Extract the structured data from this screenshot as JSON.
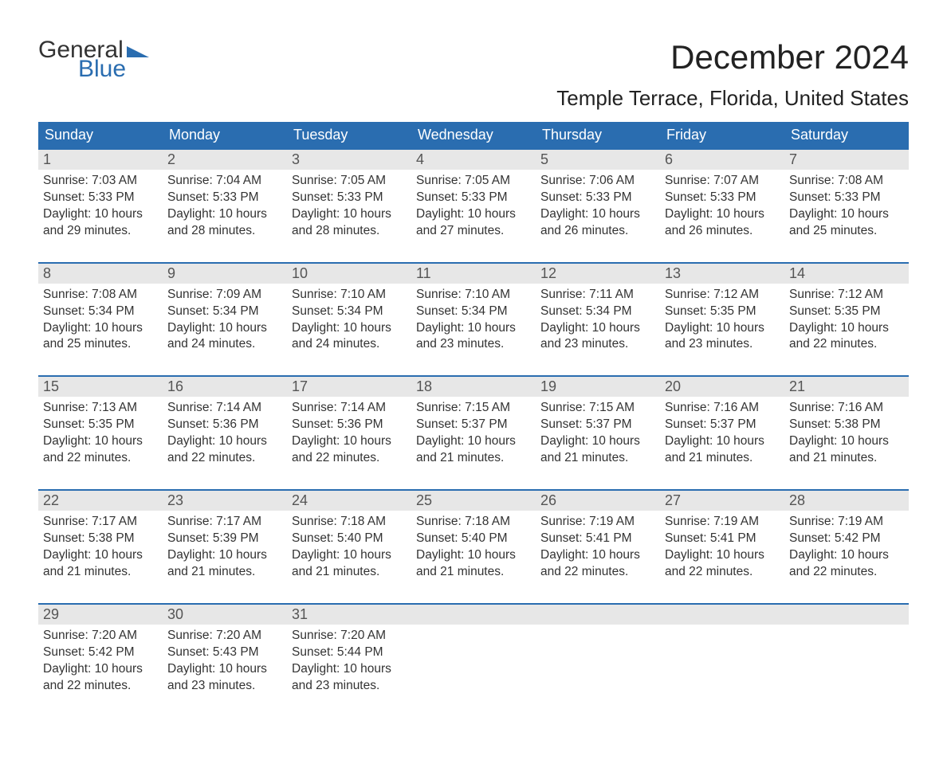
{
  "logo": {
    "text_general": "General",
    "text_blue": "Blue",
    "flag_color": "#2a6db0"
  },
  "title": "December 2024",
  "subtitle": "Temple Terrace, Florida, United States",
  "colors": {
    "header_bg": "#2a6db0",
    "header_text": "#ffffff",
    "daynum_bg": "#e7e7e7",
    "daynum_text": "#555555",
    "body_text": "#333333",
    "row_border": "#2a6db0",
    "page_bg": "#ffffff"
  },
  "days_of_week": [
    "Sunday",
    "Monday",
    "Tuesday",
    "Wednesday",
    "Thursday",
    "Friday",
    "Saturday"
  ],
  "weeks": [
    [
      {
        "n": "1",
        "sunrise": "Sunrise: 7:03 AM",
        "sunset": "Sunset: 5:33 PM",
        "dl1": "Daylight: 10 hours",
        "dl2": "and 29 minutes."
      },
      {
        "n": "2",
        "sunrise": "Sunrise: 7:04 AM",
        "sunset": "Sunset: 5:33 PM",
        "dl1": "Daylight: 10 hours",
        "dl2": "and 28 minutes."
      },
      {
        "n": "3",
        "sunrise": "Sunrise: 7:05 AM",
        "sunset": "Sunset: 5:33 PM",
        "dl1": "Daylight: 10 hours",
        "dl2": "and 28 minutes."
      },
      {
        "n": "4",
        "sunrise": "Sunrise: 7:05 AM",
        "sunset": "Sunset: 5:33 PM",
        "dl1": "Daylight: 10 hours",
        "dl2": "and 27 minutes."
      },
      {
        "n": "5",
        "sunrise": "Sunrise: 7:06 AM",
        "sunset": "Sunset: 5:33 PM",
        "dl1": "Daylight: 10 hours",
        "dl2": "and 26 minutes."
      },
      {
        "n": "6",
        "sunrise": "Sunrise: 7:07 AM",
        "sunset": "Sunset: 5:33 PM",
        "dl1": "Daylight: 10 hours",
        "dl2": "and 26 minutes."
      },
      {
        "n": "7",
        "sunrise": "Sunrise: 7:08 AM",
        "sunset": "Sunset: 5:33 PM",
        "dl1": "Daylight: 10 hours",
        "dl2": "and 25 minutes."
      }
    ],
    [
      {
        "n": "8",
        "sunrise": "Sunrise: 7:08 AM",
        "sunset": "Sunset: 5:34 PM",
        "dl1": "Daylight: 10 hours",
        "dl2": "and 25 minutes."
      },
      {
        "n": "9",
        "sunrise": "Sunrise: 7:09 AM",
        "sunset": "Sunset: 5:34 PM",
        "dl1": "Daylight: 10 hours",
        "dl2": "and 24 minutes."
      },
      {
        "n": "10",
        "sunrise": "Sunrise: 7:10 AM",
        "sunset": "Sunset: 5:34 PM",
        "dl1": "Daylight: 10 hours",
        "dl2": "and 24 minutes."
      },
      {
        "n": "11",
        "sunrise": "Sunrise: 7:10 AM",
        "sunset": "Sunset: 5:34 PM",
        "dl1": "Daylight: 10 hours",
        "dl2": "and 23 minutes."
      },
      {
        "n": "12",
        "sunrise": "Sunrise: 7:11 AM",
        "sunset": "Sunset: 5:34 PM",
        "dl1": "Daylight: 10 hours",
        "dl2": "and 23 minutes."
      },
      {
        "n": "13",
        "sunrise": "Sunrise: 7:12 AM",
        "sunset": "Sunset: 5:35 PM",
        "dl1": "Daylight: 10 hours",
        "dl2": "and 23 minutes."
      },
      {
        "n": "14",
        "sunrise": "Sunrise: 7:12 AM",
        "sunset": "Sunset: 5:35 PM",
        "dl1": "Daylight: 10 hours",
        "dl2": "and 22 minutes."
      }
    ],
    [
      {
        "n": "15",
        "sunrise": "Sunrise: 7:13 AM",
        "sunset": "Sunset: 5:35 PM",
        "dl1": "Daylight: 10 hours",
        "dl2": "and 22 minutes."
      },
      {
        "n": "16",
        "sunrise": "Sunrise: 7:14 AM",
        "sunset": "Sunset: 5:36 PM",
        "dl1": "Daylight: 10 hours",
        "dl2": "and 22 minutes."
      },
      {
        "n": "17",
        "sunrise": "Sunrise: 7:14 AM",
        "sunset": "Sunset: 5:36 PM",
        "dl1": "Daylight: 10 hours",
        "dl2": "and 22 minutes."
      },
      {
        "n": "18",
        "sunrise": "Sunrise: 7:15 AM",
        "sunset": "Sunset: 5:37 PM",
        "dl1": "Daylight: 10 hours",
        "dl2": "and 21 minutes."
      },
      {
        "n": "19",
        "sunrise": "Sunrise: 7:15 AM",
        "sunset": "Sunset: 5:37 PM",
        "dl1": "Daylight: 10 hours",
        "dl2": "and 21 minutes."
      },
      {
        "n": "20",
        "sunrise": "Sunrise: 7:16 AM",
        "sunset": "Sunset: 5:37 PM",
        "dl1": "Daylight: 10 hours",
        "dl2": "and 21 minutes."
      },
      {
        "n": "21",
        "sunrise": "Sunrise: 7:16 AM",
        "sunset": "Sunset: 5:38 PM",
        "dl1": "Daylight: 10 hours",
        "dl2": "and 21 minutes."
      }
    ],
    [
      {
        "n": "22",
        "sunrise": "Sunrise: 7:17 AM",
        "sunset": "Sunset: 5:38 PM",
        "dl1": "Daylight: 10 hours",
        "dl2": "and 21 minutes."
      },
      {
        "n": "23",
        "sunrise": "Sunrise: 7:17 AM",
        "sunset": "Sunset: 5:39 PM",
        "dl1": "Daylight: 10 hours",
        "dl2": "and 21 minutes."
      },
      {
        "n": "24",
        "sunrise": "Sunrise: 7:18 AM",
        "sunset": "Sunset: 5:40 PM",
        "dl1": "Daylight: 10 hours",
        "dl2": "and 21 minutes."
      },
      {
        "n": "25",
        "sunrise": "Sunrise: 7:18 AM",
        "sunset": "Sunset: 5:40 PM",
        "dl1": "Daylight: 10 hours",
        "dl2": "and 21 minutes."
      },
      {
        "n": "26",
        "sunrise": "Sunrise: 7:19 AM",
        "sunset": "Sunset: 5:41 PM",
        "dl1": "Daylight: 10 hours",
        "dl2": "and 22 minutes."
      },
      {
        "n": "27",
        "sunrise": "Sunrise: 7:19 AM",
        "sunset": "Sunset: 5:41 PM",
        "dl1": "Daylight: 10 hours",
        "dl2": "and 22 minutes."
      },
      {
        "n": "28",
        "sunrise": "Sunrise: 7:19 AM",
        "sunset": "Sunset: 5:42 PM",
        "dl1": "Daylight: 10 hours",
        "dl2": "and 22 minutes."
      }
    ],
    [
      {
        "n": "29",
        "sunrise": "Sunrise: 7:20 AM",
        "sunset": "Sunset: 5:42 PM",
        "dl1": "Daylight: 10 hours",
        "dl2": "and 22 minutes."
      },
      {
        "n": "30",
        "sunrise": "Sunrise: 7:20 AM",
        "sunset": "Sunset: 5:43 PM",
        "dl1": "Daylight: 10 hours",
        "dl2": "and 23 minutes."
      },
      {
        "n": "31",
        "sunrise": "Sunrise: 7:20 AM",
        "sunset": "Sunset: 5:44 PM",
        "dl1": "Daylight: 10 hours",
        "dl2": "and 23 minutes."
      },
      {
        "n": "",
        "sunrise": "",
        "sunset": "",
        "dl1": "",
        "dl2": ""
      },
      {
        "n": "",
        "sunrise": "",
        "sunset": "",
        "dl1": "",
        "dl2": ""
      },
      {
        "n": "",
        "sunrise": "",
        "sunset": "",
        "dl1": "",
        "dl2": ""
      },
      {
        "n": "",
        "sunrise": "",
        "sunset": "",
        "dl1": "",
        "dl2": ""
      }
    ]
  ]
}
